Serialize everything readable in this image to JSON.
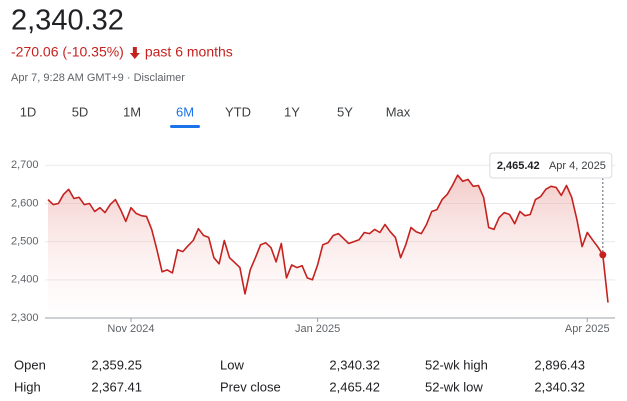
{
  "header": {
    "price": "2,340.32",
    "change": "-270.06 (-10.35%)",
    "period": "past 6 months",
    "timestamp": "Apr 7, 9:28 AM GMT+9 · Disclaimer"
  },
  "tabs": [
    "1D",
    "5D",
    "1M",
    "6M",
    "YTD",
    "1Y",
    "5Y",
    "Max"
  ],
  "active_tab": "6M",
  "chart_data": {
    "type": "line",
    "series": [
      {
        "color": "#c5221f",
        "values": [
          2610,
          2597,
          2600,
          2624,
          2637,
          2613,
          2616,
          2597,
          2600,
          2579,
          2589,
          2576,
          2597,
          2610,
          2584,
          2553,
          2589,
          2574,
          2568,
          2566,
          2532,
          2479,
          2421,
          2426,
          2418,
          2479,
          2474,
          2489,
          2503,
          2534,
          2516,
          2511,
          2458,
          2442,
          2503,
          2458,
          2445,
          2432,
          2363,
          2426,
          2458,
          2492,
          2497,
          2484,
          2447,
          2495,
          2405,
          2439,
          2432,
          2437,
          2405,
          2400,
          2439,
          2492,
          2497,
          2516,
          2521,
          2508,
          2495,
          2500,
          2505,
          2524,
          2521,
          2532,
          2524,
          2545,
          2526,
          2511,
          2458,
          2492,
          2537,
          2526,
          2521,
          2545,
          2579,
          2584,
          2610,
          2624,
          2647,
          2674,
          2658,
          2663,
          2645,
          2647,
          2616,
          2537,
          2532,
          2563,
          2576,
          2571,
          2547,
          2579,
          2568,
          2571,
          2610,
          2618,
          2637,
          2645,
          2642,
          2621,
          2647,
          2616,
          2558,
          2487,
          2524,
          2505,
          2487,
          2465.42,
          2340.32
        ]
      }
    ],
    "xlim": [
      0,
      108
    ],
    "xticks": [
      {
        "value": 16,
        "label": "Nov 2024"
      },
      {
        "value": 52,
        "label": "Jan 2025"
      },
      {
        "value": 104,
        "label": "Apr 2025"
      }
    ],
    "ylim": [
      2300,
      2740
    ],
    "yticks": [
      {
        "value": 2300,
        "label": "2,300"
      },
      {
        "value": 2400,
        "label": "2,400"
      },
      {
        "value": 2500,
        "label": "2,500"
      },
      {
        "value": 2600,
        "label": "2,600"
      },
      {
        "value": 2700,
        "label": "2,700"
      }
    ],
    "grid": true,
    "tooltip": {
      "value_label": "2,465.42",
      "date": "Apr 4, 2025"
    }
  },
  "stats": [
    {
      "label": "Open",
      "value": "2,359.25"
    },
    {
      "label": "High",
      "value": "2,367.41"
    },
    {
      "label": "Low",
      "value": "2,340.32"
    },
    {
      "label": "Prev close",
      "value": "2,465.42"
    },
    {
      "label": "52-wk high",
      "value": "2,896.43"
    },
    {
      "label": "52-wk low",
      "value": "2,340.32"
    }
  ]
}
